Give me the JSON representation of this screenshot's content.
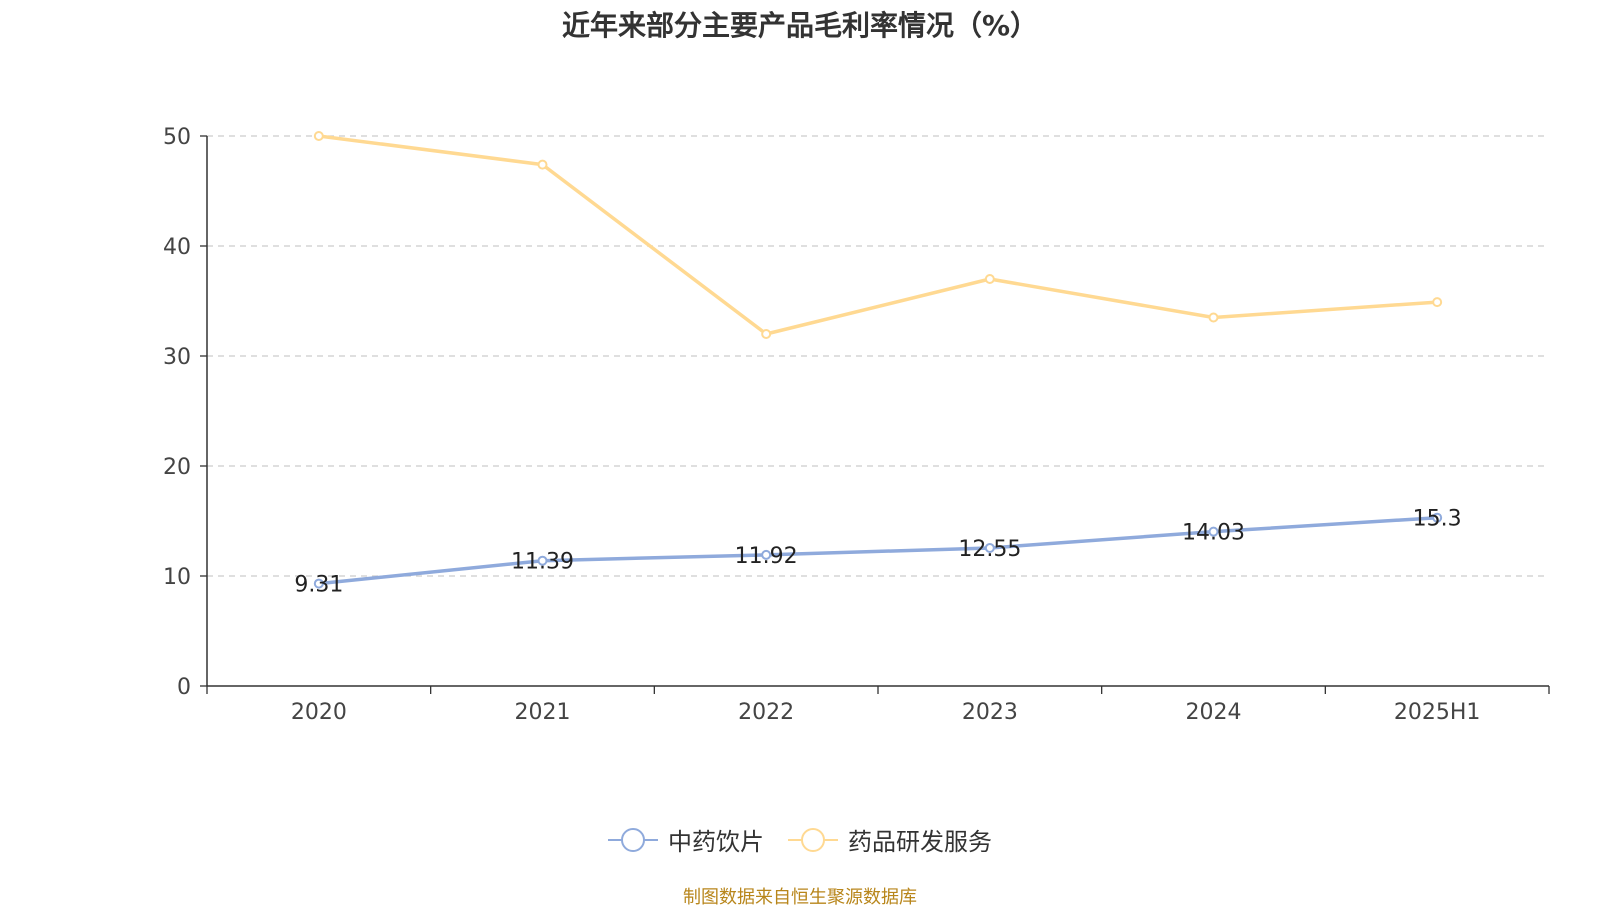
{
  "title": "近年来部分主要产品毛利率情况（%）",
  "source_note": "制图数据来自恒生聚源数据库",
  "colors": {
    "series1": "#8faadc",
    "series2": "#ffd992",
    "axis": "#333333",
    "grid": "#cccccc",
    "source": "#b8861b"
  },
  "chart_data": {
    "type": "line",
    "title": "近年来部分主要产品毛利率情况（%）",
    "categories": [
      "2020",
      "2021",
      "2022",
      "2023",
      "2024",
      "2025H1"
    ],
    "ylim": [
      0,
      50
    ],
    "yticks": [
      0,
      10,
      20,
      30,
      40,
      50
    ],
    "grid": true,
    "legend_position": "bottom",
    "series": [
      {
        "name": "中药饮片",
        "values": [
          9.31,
          11.39,
          11.92,
          12.55,
          14.03,
          15.3
        ],
        "labels": [
          "9.31",
          "11.39",
          "11.92",
          "12.55",
          "14.03",
          "15.3"
        ],
        "show_labels": true
      },
      {
        "name": "药品研发服务",
        "values": [
          50.0,
          47.4,
          32.0,
          37.0,
          33.5,
          34.9
        ],
        "show_labels": false
      }
    ]
  }
}
